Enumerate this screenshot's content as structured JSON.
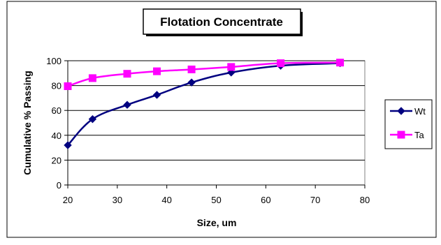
{
  "chart_data": {
    "type": "line",
    "title": "Flotation Concentrate",
    "xlabel": "Size, um",
    "ylabel": "Cumulative % Passing",
    "xlim": [
      20,
      80
    ],
    "ylim": [
      0,
      100
    ],
    "xticks": [
      20,
      30,
      40,
      50,
      60,
      70,
      80
    ],
    "yticks": [
      0,
      20,
      40,
      60,
      80,
      100
    ],
    "grid": "horizontal",
    "legend_position": "right",
    "series": [
      {
        "name": "Wt",
        "color": "#000080",
        "marker": "diamond",
        "x": [
          20,
          25,
          32,
          38,
          45,
          53,
          63,
          75
        ],
        "y": [
          32,
          53,
          64.5,
          72.5,
          82.5,
          90.5,
          96,
          98
        ]
      },
      {
        "name": "Ta",
        "color": "#FF00FF",
        "marker": "square",
        "x": [
          20,
          25,
          32,
          38,
          45,
          53,
          63,
          75
        ],
        "y": [
          79.5,
          86,
          89.5,
          91.5,
          93,
          95,
          98,
          98.5
        ]
      }
    ]
  }
}
